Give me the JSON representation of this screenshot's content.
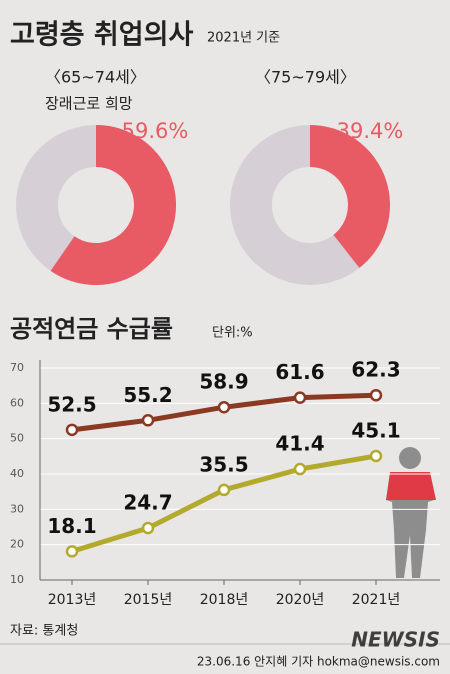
{
  "header": {
    "title": "고령층 취업의사",
    "subtitle": "2021년 기준"
  },
  "chart_data": [
    {
      "type": "donut",
      "title": "〈65~74세〉",
      "subtitle": "장래근로 희망",
      "values": [
        59.6
      ],
      "value_labels": [
        "59.6%"
      ],
      "color": "#e85a64",
      "track_color": "#d6d0d6"
    },
    {
      "type": "donut",
      "title": "〈75~79세〉",
      "values": [
        39.4
      ],
      "value_labels": [
        "39.4%"
      ],
      "color": "#e85a64",
      "track_color": "#d6d0d6"
    },
    {
      "type": "line",
      "title": "공적연금 수급률",
      "unit": "단위:%",
      "categories": [
        "2013년",
        "2015년",
        "2018년",
        "2020년",
        "2021년"
      ],
      "series": [
        {
          "color": "#8a3a22",
          "values": [
            52.5,
            55.2,
            58.9,
            61.6,
            62.3
          ]
        },
        {
          "color": "#b3aa2c",
          "values": [
            18.1,
            24.7,
            35.5,
            41.4,
            45.1
          ]
        }
      ],
      "ylim": [
        10,
        70
      ],
      "yticks": [
        10,
        20,
        30,
        40,
        50,
        60,
        70
      ],
      "grid": true
    }
  ],
  "footer": {
    "source": "자료: 통계청",
    "credit": "23.06.16 안지혜 기자 hokma@newsis.com",
    "watermark": "NEWSIS"
  }
}
